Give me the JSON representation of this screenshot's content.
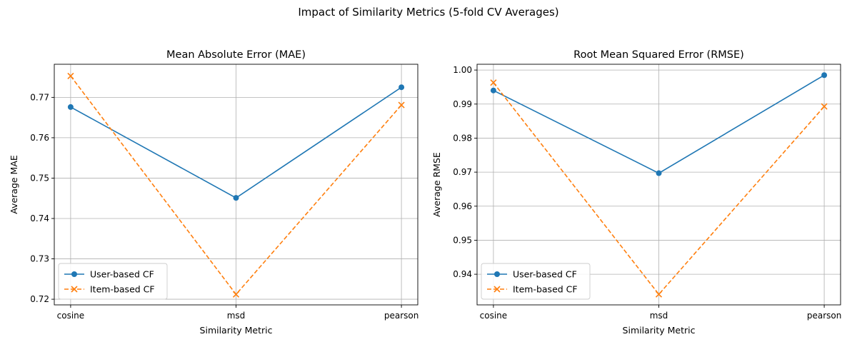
{
  "suptitle": "Impact of Similarity Metrics (5-fold CV Averages)",
  "chart_data": [
    {
      "type": "line",
      "title": "Mean Absolute Error (MAE)",
      "xlabel": "Similarity Metric",
      "ylabel": "Average MAE",
      "categories": [
        "cosine",
        "msd",
        "pearson"
      ],
      "ylim": [
        0.7186,
        0.7782
      ],
      "yticks": [
        0.72,
        0.73,
        0.74,
        0.75,
        0.76,
        0.77
      ],
      "yticklabels": [
        "0.72",
        "0.73",
        "0.74",
        "0.75",
        "0.76",
        "0.77"
      ],
      "grid": true,
      "legend_position": "lower-left",
      "series": [
        {
          "name": "User-based CF",
          "values": [
            0.7676,
            0.7451,
            0.7725
          ],
          "color": "#1f77b4",
          "marker": "circle",
          "dash": "solid"
        },
        {
          "name": "Item-based CF",
          "values": [
            0.7753,
            0.7212,
            0.7681
          ],
          "color": "#ff7f0e",
          "marker": "x",
          "dash": "dashed"
        }
      ]
    },
    {
      "type": "line",
      "title": "Root Mean Squared Error (RMSE)",
      "xlabel": "Similarity Metric",
      "ylabel": "Average RMSE",
      "categories": [
        "cosine",
        "msd",
        "pearson"
      ],
      "ylim": [
        0.931,
        1.0017
      ],
      "yticks": [
        0.94,
        0.95,
        0.96,
        0.97,
        0.98,
        0.99,
        1.0
      ],
      "yticklabels": [
        "0.94",
        "0.95",
        "0.96",
        "0.97",
        "0.98",
        "0.99",
        "1.00"
      ],
      "grid": true,
      "legend_position": "lower-left",
      "series": [
        {
          "name": "User-based CF",
          "values": [
            0.994,
            0.9697,
            0.9985
          ],
          "color": "#1f77b4",
          "marker": "circle",
          "dash": "solid"
        },
        {
          "name": "Item-based CF",
          "values": [
            0.9963,
            0.9341,
            0.9893
          ],
          "color": "#ff7f0e",
          "marker": "x",
          "dash": "dashed"
        }
      ]
    }
  ]
}
